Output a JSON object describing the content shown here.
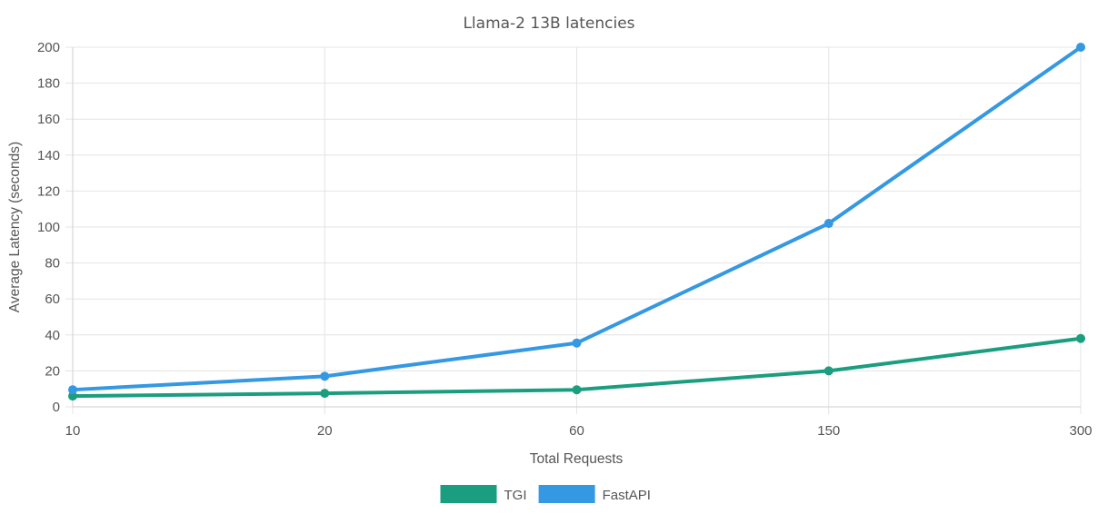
{
  "chart_data": {
    "type": "line",
    "title": "Llama-2 13B latencies",
    "xlabel": "Total Requests",
    "ylabel": "Average Latency (seconds)",
    "categories": [
      "10",
      "20",
      "60",
      "150",
      "300"
    ],
    "ylim": [
      0,
      200
    ],
    "yticks": [
      0,
      20,
      40,
      60,
      80,
      100,
      120,
      140,
      160,
      180,
      200
    ],
    "grid": true,
    "legend_position": "bottom",
    "series": [
      {
        "name": "TGI",
        "color": "#1a9e7f",
        "values": [
          6,
          7.5,
          9.5,
          20,
          38
        ]
      },
      {
        "name": "FastAPI",
        "color": "#3498e3",
        "values": [
          9.5,
          17,
          35.5,
          102,
          200
        ]
      }
    ]
  }
}
